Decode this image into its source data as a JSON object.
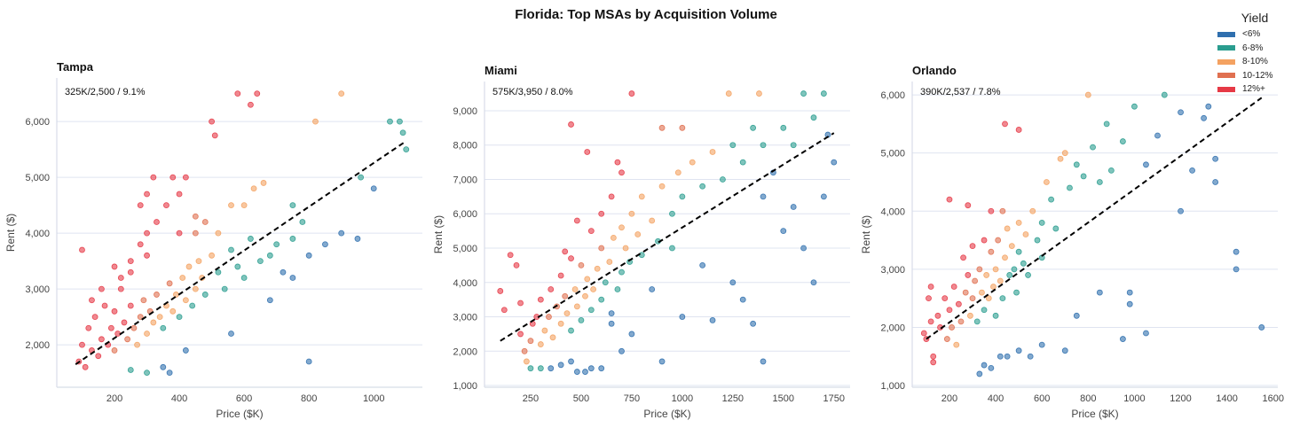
{
  "title": "Florida: Top MSAs by Acquisition Volume",
  "legend": {
    "title": "Yield",
    "items": [
      {
        "label": "<6%",
        "color": "#2f6fae"
      },
      {
        "label": "6-8%",
        "color": "#2a9d8f"
      },
      {
        "label": "8-10%",
        "color": "#f4a261"
      },
      {
        "label": "10-12%",
        "color": "#e07050"
      },
      {
        "label": "12%+",
        "color": "#e63946"
      }
    ]
  },
  "chart_data": [
    {
      "type": "scatter",
      "title": "Tampa",
      "annotation": "325K/2,500 / 9.1%",
      "xlabel": "Price ($K)",
      "ylabel": "Rent ($)",
      "xlim": [
        22,
        1150
      ],
      "ylim": [
        1240,
        6780
      ],
      "xticks": [
        200,
        400,
        600,
        800,
        1000
      ],
      "xtick_labels": [
        "200",
        "400",
        "600",
        "800",
        "1000"
      ],
      "yticks": [
        2000,
        3000,
        4000,
        5000,
        6000
      ],
      "ytick_labels": [
        "2,000",
        "3,000",
        "4,000",
        "5,000",
        "6,000"
      ],
      "trend": [
        [
          80,
          1650
        ],
        [
          1100,
          5650
        ]
      ],
      "points": [
        [
          90,
          1700
        ],
        [
          100,
          2000
        ],
        [
          110,
          1600
        ],
        [
          120,
          2300
        ],
        [
          130,
          1900
        ],
        [
          140,
          2500
        ],
        [
          150,
          1800
        ],
        [
          160,
          2100
        ],
        [
          170,
          2700
        ],
        [
          180,
          2000
        ],
        [
          190,
          2300
        ],
        [
          200,
          2600
        ],
        [
          200,
          1900
        ],
        [
          210,
          2200
        ],
        [
          220,
          3000
        ],
        [
          230,
          2400
        ],
        [
          240,
          2100
        ],
        [
          250,
          2700
        ],
        [
          250,
          3300
        ],
        [
          260,
          2300
        ],
        [
          270,
          2000
        ],
        [
          280,
          2500
        ],
        [
          290,
          2800
        ],
        [
          300,
          2200
        ],
        [
          300,
          3600
        ],
        [
          310,
          2600
        ],
        [
          320,
          2400
        ],
        [
          330,
          2900
        ],
        [
          340,
          2500
        ],
        [
          350,
          2300
        ],
        [
          360,
          2700
        ],
        [
          370,
          3100
        ],
        [
          380,
          2600
        ],
        [
          390,
          2900
        ],
        [
          400,
          2500
        ],
        [
          410,
          3200
        ],
        [
          420,
          2800
        ],
        [
          430,
          3400
        ],
        [
          440,
          2700
        ],
        [
          450,
          3000
        ],
        [
          460,
          3500
        ],
        [
          470,
          3200
        ],
        [
          480,
          2900
        ],
        [
          500,
          3600
        ],
        [
          520,
          3300
        ],
        [
          540,
          3000
        ],
        [
          560,
          3700
        ],
        [
          580,
          3400
        ],
        [
          600,
          3200
        ],
        [
          620,
          3900
        ],
        [
          650,
          3500
        ],
        [
          680,
          3600
        ],
        [
          700,
          3800
        ],
        [
          720,
          3300
        ],
        [
          750,
          3900
        ],
        [
          780,
          4200
        ],
        [
          800,
          3600
        ],
        [
          850,
          3800
        ],
        [
          900,
          4000
        ],
        [
          950,
          3900
        ],
        [
          1000,
          4800
        ],
        [
          960,
          5000
        ],
        [
          1050,
          6000
        ],
        [
          1080,
          6000
        ],
        [
          1100,
          5500
        ],
        [
          1090,
          5800
        ],
        [
          900,
          6500
        ],
        [
          820,
          6000
        ],
        [
          750,
          4500
        ],
        [
          660,
          4900
        ],
        [
          630,
          4800
        ],
        [
          600,
          4500
        ],
        [
          560,
          4500
        ],
        [
          520,
          4000
        ],
        [
          480,
          4200
        ],
        [
          450,
          4300
        ],
        [
          400,
          4700
        ],
        [
          380,
          5000
        ],
        [
          360,
          4500
        ],
        [
          330,
          4200
        ],
        [
          300,
          4000
        ],
        [
          280,
          3800
        ],
        [
          250,
          3500
        ],
        [
          220,
          3200
        ],
        [
          200,
          3400
        ],
        [
          160,
          3000
        ],
        [
          130,
          2800
        ],
        [
          100,
          3700
        ],
        [
          580,
          6500
        ],
        [
          640,
          6500
        ],
        [
          620,
          6300
        ],
        [
          500,
          6000
        ],
        [
          510,
          5750
        ],
        [
          800,
          1700
        ],
        [
          370,
          1500
        ],
        [
          350,
          1600
        ],
        [
          300,
          1500
        ],
        [
          250,
          1550
        ],
        [
          420,
          1900
        ],
        [
          560,
          2200
        ],
        [
          680,
          2800
        ],
        [
          750,
          3200
        ],
        [
          400,
          4000
        ],
        [
          420,
          5000
        ],
        [
          450,
          4000
        ],
        [
          280,
          4500
        ],
        [
          300,
          4700
        ],
        [
          320,
          5000
        ]
      ]
    },
    {
      "type": "scatter",
      "title": "Miami",
      "annotation": "575K/3,950 / 8.0%",
      "xlabel": "Price ($K)",
      "ylabel": "Rent ($)",
      "xlim": [
        22,
        1830
      ],
      "ylim": [
        950,
        9850
      ],
      "xticks": [
        250,
        500,
        750,
        1000,
        1250,
        1500,
        1750
      ],
      "xtick_labels": [
        "250",
        "500",
        "750",
        "1000",
        "1250",
        "1500",
        "1750"
      ],
      "yticks": [
        1000,
        2000,
        3000,
        4000,
        5000,
        6000,
        7000,
        8000,
        9000
      ],
      "ytick_labels": [
        "1,000",
        "2,000",
        "3,000",
        "4,000",
        "5,000",
        "6,000",
        "7,000",
        "8,000",
        "9,000"
      ],
      "trend": [
        [
          100,
          2300
        ],
        [
          1750,
          8350
        ]
      ],
      "points": [
        [
          100,
          3750
        ],
        [
          120,
          3200
        ],
        [
          150,
          4800
        ],
        [
          180,
          4500
        ],
        [
          200,
          3400
        ],
        [
          200,
          2500
        ],
        [
          220,
          2000
        ],
        [
          230,
          1700
        ],
        [
          250,
          2300
        ],
        [
          260,
          2800
        ],
        [
          280,
          3000
        ],
        [
          300,
          3500
        ],
        [
          300,
          2200
        ],
        [
          320,
          2600
        ],
        [
          340,
          3000
        ],
        [
          350,
          3800
        ],
        [
          360,
          2400
        ],
        [
          380,
          3300
        ],
        [
          400,
          2800
        ],
        [
          400,
          4200
        ],
        [
          420,
          3600
        ],
        [
          430,
          3100
        ],
        [
          450,
          2600
        ],
        [
          450,
          4700
        ],
        [
          470,
          3800
        ],
        [
          480,
          3300
        ],
        [
          500,
          2900
        ],
        [
          500,
          4500
        ],
        [
          520,
          3600
        ],
        [
          530,
          4100
        ],
        [
          550,
          3200
        ],
        [
          560,
          3800
        ],
        [
          580,
          4400
        ],
        [
          600,
          3500
        ],
        [
          600,
          5000
        ],
        [
          620,
          4000
        ],
        [
          640,
          4600
        ],
        [
          650,
          3100
        ],
        [
          660,
          5300
        ],
        [
          680,
          3800
        ],
        [
          700,
          4300
        ],
        [
          700,
          5600
        ],
        [
          720,
          5000
        ],
        [
          740,
          4600
        ],
        [
          750,
          6000
        ],
        [
          780,
          5400
        ],
        [
          800,
          4800
        ],
        [
          800,
          6500
        ],
        [
          850,
          5800
        ],
        [
          880,
          5200
        ],
        [
          900,
          6800
        ],
        [
          950,
          6000
        ],
        [
          980,
          7200
        ],
        [
          1000,
          6500
        ],
        [
          1050,
          7500
        ],
        [
          1100,
          6800
        ],
        [
          1150,
          7800
        ],
        [
          1200,
          7000
        ],
        [
          1250,
          8000
        ],
        [
          1300,
          7500
        ],
        [
          1350,
          8500
        ],
        [
          1400,
          8000
        ],
        [
          1450,
          7200
        ],
        [
          1500,
          8500
        ],
        [
          1550,
          8000
        ],
        [
          1600,
          9500
        ],
        [
          1650,
          8800
        ],
        [
          1700,
          9500
        ],
        [
          1720,
          8300
        ],
        [
          1750,
          7500
        ],
        [
          1700,
          6500
        ],
        [
          1650,
          4000
        ],
        [
          1600,
          5000
        ],
        [
          1550,
          6200
        ],
        [
          1500,
          5500
        ],
        [
          1400,
          6500
        ],
        [
          1400,
          1700
        ],
        [
          1350,
          2800
        ],
        [
          1300,
          3500
        ],
        [
          1250,
          4000
        ],
        [
          1150,
          2900
        ],
        [
          1100,
          4500
        ],
        [
          1000,
          3000
        ],
        [
          950,
          5000
        ],
        [
          900,
          1700
        ],
        [
          850,
          3800
        ],
        [
          750,
          2500
        ],
        [
          700,
          2000
        ],
        [
          650,
          2800
        ],
        [
          600,
          1500
        ],
        [
          550,
          1500
        ],
        [
          520,
          1400
        ],
        [
          480,
          1400
        ],
        [
          450,
          1700
        ],
        [
          400,
          1600
        ],
        [
          350,
          1500
        ],
        [
          300,
          1500
        ],
        [
          250,
          1500
        ],
        [
          700,
          7200
        ],
        [
          680,
          7500
        ],
        [
          750,
          9500
        ],
        [
          650,
          6500
        ],
        [
          600,
          6000
        ],
        [
          550,
          5500
        ],
        [
          480,
          5800
        ],
        [
          450,
          8600
        ],
        [
          530,
          7800
        ],
        [
          420,
          4900
        ],
        [
          1380,
          9500
        ],
        [
          1230,
          9500
        ],
        [
          900,
          8500
        ],
        [
          1000,
          8500
        ]
      ]
    },
    {
      "type": "scatter",
      "title": "Orlando",
      "annotation": "390K/2,537 / 7.8%",
      "xlabel": "Price ($K)",
      "ylabel": "Rent ($)",
      "xlim": [
        39,
        1620
      ],
      "ylim": [
        970,
        6230
      ],
      "xticks": [
        200,
        400,
        600,
        800,
        1000,
        1200,
        1400,
        1600
      ],
      "xtick_labels": [
        "200",
        "400",
        "600",
        "800",
        "1000",
        "1200",
        "1400",
        "1600"
      ],
      "yticks": [
        1000,
        2000,
        3000,
        4000,
        5000,
        6000
      ],
      "ytick_labels": [
        "1,000",
        "2,000",
        "3,000",
        "4,000",
        "5,000",
        "6,000"
      ],
      "trend": [
        [
          100,
          1800
        ],
        [
          1550,
          5950
        ]
      ],
      "points": [
        [
          100,
          1800
        ],
        [
          110,
          2500
        ],
        [
          120,
          2700
        ],
        [
          130,
          1500
        ],
        [
          150,
          2200
        ],
        [
          160,
          2000
        ],
        [
          180,
          2500
        ],
        [
          190,
          1800
        ],
        [
          200,
          2300
        ],
        [
          200,
          4200
        ],
        [
          210,
          2000
        ],
        [
          220,
          2700
        ],
        [
          230,
          1700
        ],
        [
          240,
          2400
        ],
        [
          250,
          2100
        ],
        [
          260,
          3200
        ],
        [
          270,
          2600
        ],
        [
          280,
          2900
        ],
        [
          290,
          2200
        ],
        [
          300,
          3400
        ],
        [
          300,
          2500
        ],
        [
          310,
          2800
        ],
        [
          320,
          2100
        ],
        [
          330,
          3000
        ],
        [
          340,
          2600
        ],
        [
          350,
          3500
        ],
        [
          350,
          2300
        ],
        [
          360,
          2900
        ],
        [
          370,
          2500
        ],
        [
          380,
          3300
        ],
        [
          380,
          4000
        ],
        [
          390,
          2700
        ],
        [
          400,
          3000
        ],
        [
          400,
          2200
        ],
        [
          410,
          3500
        ],
        [
          420,
          2800
        ],
        [
          430,
          2500
        ],
        [
          440,
          3200
        ],
        [
          450,
          3700
        ],
        [
          460,
          2900
        ],
        [
          470,
          3400
        ],
        [
          480,
          3000
        ],
        [
          490,
          2600
        ],
        [
          500,
          3800
        ],
        [
          500,
          3300
        ],
        [
          520,
          3100
        ],
        [
          530,
          3600
        ],
        [
          540,
          2900
        ],
        [
          560,
          4000
        ],
        [
          580,
          3500
        ],
        [
          600,
          3800
        ],
        [
          600,
          3200
        ],
        [
          620,
          4500
        ],
        [
          640,
          4200
        ],
        [
          660,
          3700
        ],
        [
          680,
          4900
        ],
        [
          700,
          5000
        ],
        [
          720,
          4400
        ],
        [
          750,
          4800
        ],
        [
          780,
          4600
        ],
        [
          800,
          6000
        ],
        [
          820,
          5100
        ],
        [
          850,
          4500
        ],
        [
          880,
          5500
        ],
        [
          900,
          4700
        ],
        [
          950,
          5200
        ],
        [
          1000,
          5800
        ],
        [
          1050,
          4800
        ],
        [
          1100,
          5300
        ],
        [
          1130,
          6000
        ],
        [
          1200,
          5700
        ],
        [
          1200,
          4000
        ],
        [
          1250,
          4700
        ],
        [
          1300,
          5600
        ],
        [
          1320,
          5800
        ],
        [
          1350,
          4500
        ],
        [
          1350,
          4900
        ],
        [
          1440,
          3300
        ],
        [
          1440,
          3000
        ],
        [
          1550,
          2000
        ],
        [
          1050,
          1900
        ],
        [
          980,
          2600
        ],
        [
          980,
          2400
        ],
        [
          950,
          1800
        ],
        [
          850,
          2600
        ],
        [
          750,
          2200
        ],
        [
          700,
          1600
        ],
        [
          600,
          1700
        ],
        [
          550,
          1500
        ],
        [
          500,
          1600
        ],
        [
          450,
          1500
        ],
        [
          420,
          1500
        ],
        [
          380,
          1300
        ],
        [
          350,
          1350
        ],
        [
          330,
          1200
        ],
        [
          440,
          5500
        ],
        [
          500,
          5400
        ],
        [
          280,
          4100
        ],
        [
          430,
          4000
        ],
        [
          130,
          1400
        ],
        [
          90,
          1900
        ],
        [
          120,
          2100
        ]
      ]
    }
  ]
}
